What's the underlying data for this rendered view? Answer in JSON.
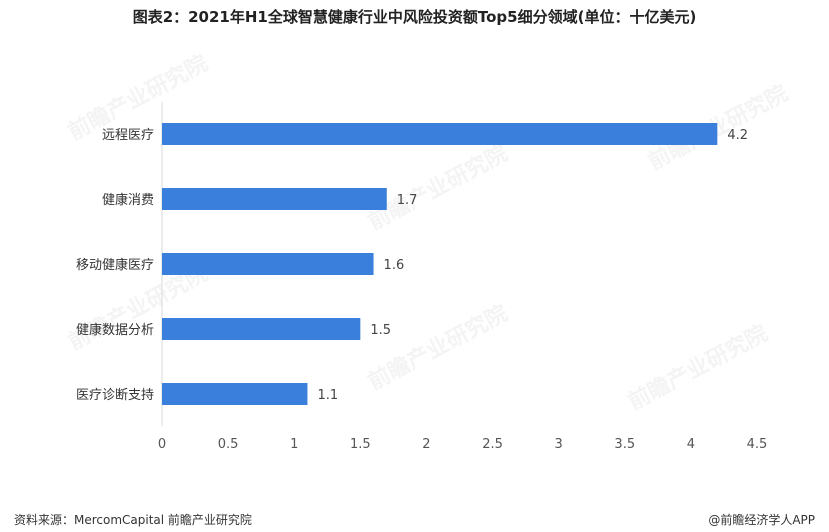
{
  "header": {
    "title": "图表2：2021年H1全球智慧健康行业中风险投资额Top5细分领域(单位：十亿美元)"
  },
  "watermark": {
    "text": "前瞻产业研究院"
  },
  "footer": {
    "source": "资料来源：MercomCapital 前瞻产业研究院",
    "credit": "@前瞻经济学人APP"
  },
  "chart_data": {
    "type": "bar",
    "orientation": "horizontal",
    "categories": [
      "远程医疗",
      "健康消费",
      "移动健康医疗",
      "健康数据分析",
      "医疗诊断支持"
    ],
    "values": [
      4.2,
      1.7,
      1.6,
      1.5,
      1.1
    ],
    "xlim": [
      0,
      4.5
    ],
    "xticks": [
      "0",
      "0.5",
      "1",
      "1.5",
      "2",
      "2.5",
      "3",
      "3.5",
      "4",
      "4.5"
    ],
    "bar_color": "#3b7fdc",
    "grid": false,
    "legend": "none"
  }
}
